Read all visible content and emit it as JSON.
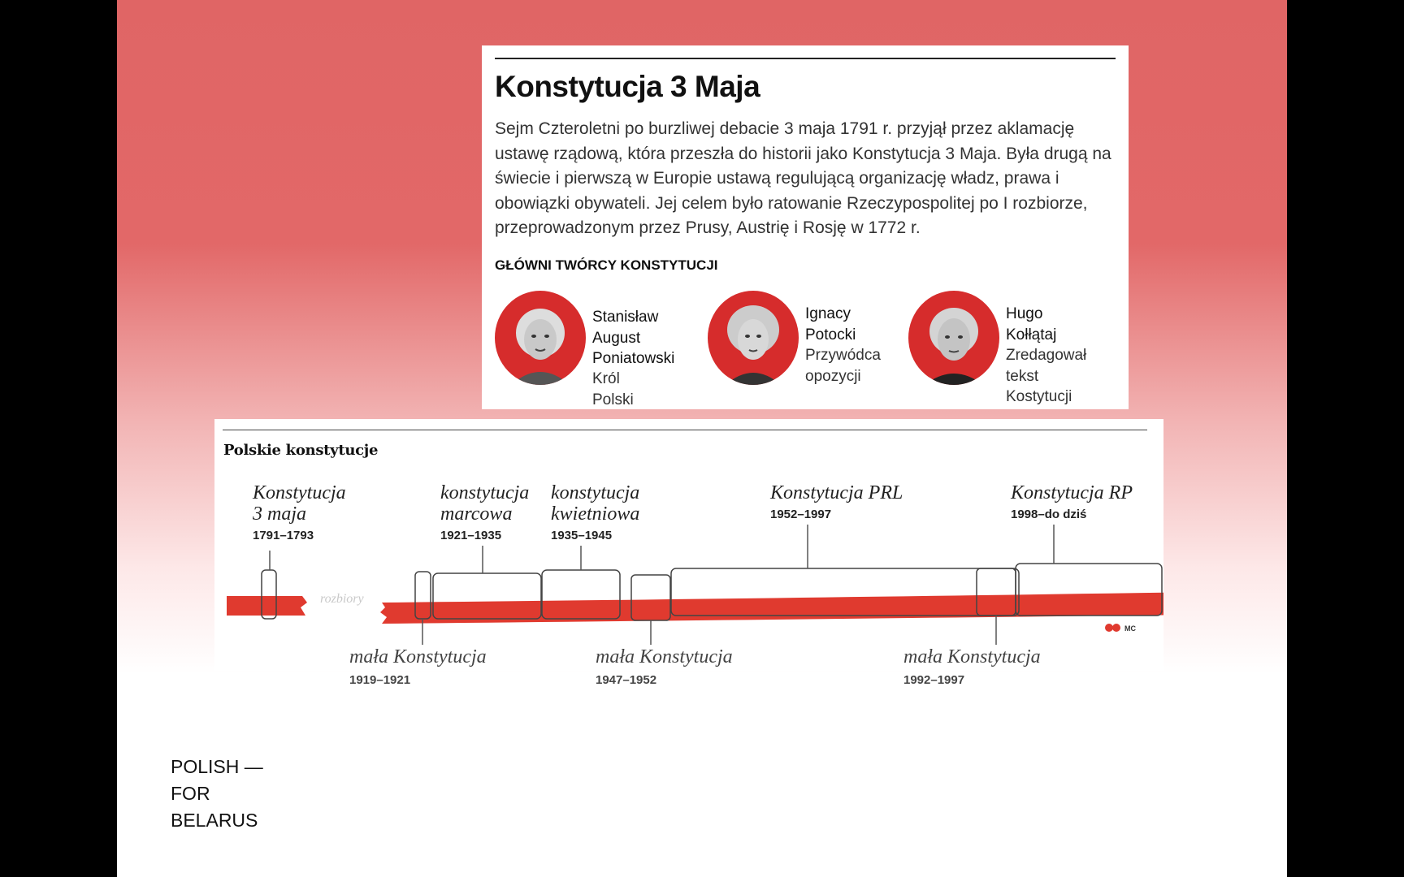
{
  "card": {
    "title": "Konstytucja 3 Maja",
    "body": "Sejm Czteroletni po burzliwej debacie 3 maja 1791 r. przyjął przez aklamację ustawę rządową, która przeszła do historii jako Konstytucja 3 Maja. Była drugą na świecie i pierwszą w Europie ustawą regulującą organizację władz, prawa i obowiązki obywateli. Jej celem było ratowanie Rzeczypospolitej po I rozbiorze, przeprowadzonym przez Prusy, Austrię i Rosję w 1772 r.",
    "subhead": "GŁÓWNI TWÓRCY KONSTYTUCJI",
    "people": [
      {
        "name": "Stanisław\nAugust\nPoniatowski",
        "role": "Król Polski"
      },
      {
        "name": "Ignacy\nPotocki",
        "role": "Przywódca\nopozycji"
      },
      {
        "name": "Hugo\nKołłątaj",
        "role": "Zredagował\ntekst Kostytucji"
      }
    ]
  },
  "timeline": {
    "title": "Polskie konstytucje",
    "gap_label": "rozbiory",
    "credit": "MC",
    "upper": [
      {
        "name": "Konstytucja\n3 maja",
        "years": "1791–1793"
      },
      {
        "name": "konstytucja\nmarcowa",
        "years": "1921–1935"
      },
      {
        "name": "konstytucja\nkwietniowa",
        "years": "1935–1945"
      },
      {
        "name": "Konstytucja PRL",
        "years": "1952–1997"
      },
      {
        "name": "Konstytucja RP",
        "years": "1998–do dziś"
      }
    ],
    "lower": [
      {
        "name": "mała Konstytucja",
        "years": "1919–1921"
      },
      {
        "name": "mała Konstytucja",
        "years": "1947–1952"
      },
      {
        "name": "mała Konstytucja",
        "years": "1992–1997"
      }
    ],
    "colors": {
      "red": "#e03a2f",
      "white": "#ffffff",
      "outline": "#444444"
    }
  },
  "logo": {
    "line1": "POLISH —",
    "line2": "FOR",
    "line3": "BELARUS"
  }
}
